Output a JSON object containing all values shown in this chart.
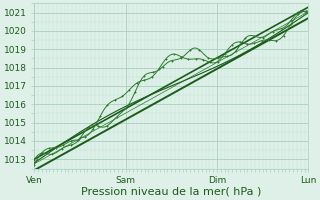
{
  "bg_color": "#dff0e8",
  "grid_color_major": "#a8cfc0",
  "grid_color_minor": "#c4e4d8",
  "line_color_dark": "#1a5c1a",
  "line_color_mid": "#2d7a2d",
  "xlabel": "Pression niveau de la mer( hPa )",
  "xlabel_fontsize": 8,
  "ylabel_ticks": [
    1013,
    1014,
    1015,
    1016,
    1017,
    1018,
    1019,
    1020,
    1021
  ],
  "ylim": [
    1012.5,
    1021.5
  ],
  "xtick_labels": [
    "Ven",
    "Sam",
    "Dim",
    "Lun"
  ],
  "xtick_positions": [
    0,
    1,
    2,
    3
  ],
  "xlim": [
    0,
    3.0
  ],
  "tick_fontsize": 6.5
}
